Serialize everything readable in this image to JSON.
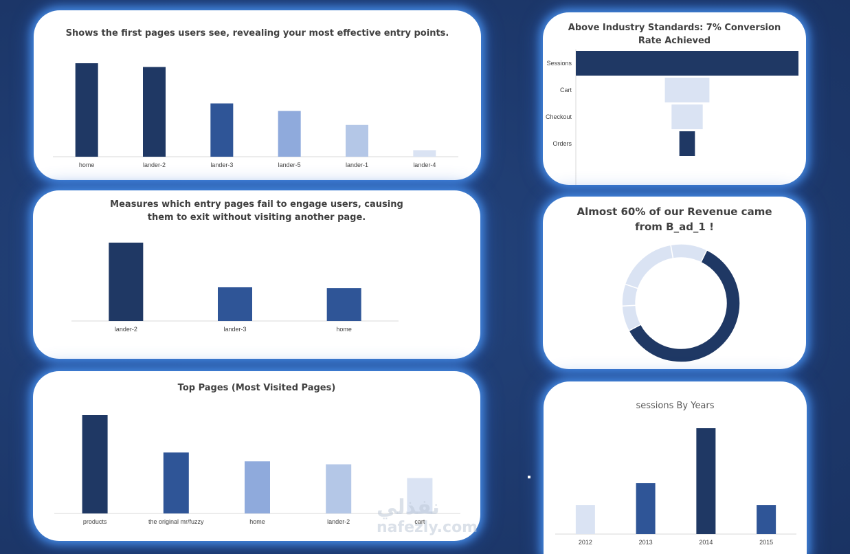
{
  "colors": {
    "navy": "#1f3864",
    "blue": "#2f5597",
    "mid_blue": "#8faadc",
    "light_blue": "#b4c7e7",
    "pale_blue": "#dae3f3",
    "page_bg": "#1e3a6e"
  },
  "watermark": {
    "arabic": "نفذلي",
    "latin": "nafezly.com"
  },
  "chart_data": [
    {
      "id": "entry",
      "type": "bar",
      "title": "Shows the first pages users see, revealing your most effective entry points.",
      "categories": [
        "home",
        "lander-2",
        "lander-3",
        "lander-5",
        "lander-1",
        "lander-4"
      ],
      "values": [
        100,
        96,
        57,
        49,
        34,
        7
      ],
      "bar_colors": [
        "#1f3864",
        "#1f3864",
        "#2f5597",
        "#8faadc",
        "#b4c7e7",
        "#dae3f3"
      ],
      "ylim": [
        0,
        100
      ]
    },
    {
      "id": "bounce",
      "type": "bar",
      "title": "Measures which entry pages fail to engage users, causing them to exit without visiting another page.",
      "categories": [
        "lander-2",
        "lander-3",
        "home"
      ],
      "values": [
        100,
        43,
        42
      ],
      "bar_colors": [
        "#1f3864",
        "#2f5597",
        "#2f5597"
      ],
      "ylim": [
        0,
        100
      ]
    },
    {
      "id": "top",
      "type": "bar",
      "title": "Top Pages (Most Visited Pages)",
      "categories": [
        "products",
        "the original mr/fuzzy",
        "home",
        "lander-2",
        "cart"
      ],
      "values": [
        100,
        62,
        53,
        50,
        36
      ],
      "bar_colors": [
        "#1f3864",
        "#2f5597",
        "#8faadc",
        "#b4c7e7",
        "#dae3f3"
      ],
      "ylim": [
        0,
        100
      ]
    },
    {
      "id": "funnel",
      "type": "bar",
      "orientation": "horizontal-funnel",
      "title": "Above Industry Standards: 7% Conversion Rate Achieved",
      "categories": [
        "Sessions",
        "Cart",
        "Checkout",
        "Orders"
      ],
      "values": [
        100,
        20,
        14,
        7
      ],
      "bar_colors": [
        "#1f3864",
        "#dae3f3",
        "#dae3f3",
        "#1f3864"
      ],
      "ylim": [
        0,
        100
      ]
    },
    {
      "id": "donut",
      "type": "pie",
      "style": "donut",
      "title": "Almost 60% of our Revenue came from B_ad_1 !",
      "values": [
        60,
        7,
        6,
        17,
        10
      ],
      "slice_colors": [
        "#1f3864",
        "#dae3f3",
        "#dae3f3",
        "#dae3f3",
        "#dae3f3"
      ]
    },
    {
      "id": "years",
      "type": "bar",
      "title": "sessions By Years",
      "categories": [
        "2012",
        "2013",
        "2014",
        "2015"
      ],
      "values": [
        42,
        74,
        154,
        42
      ],
      "bar_colors": [
        "#dae3f3",
        "#2f5597",
        "#1f3864",
        "#2f5597"
      ],
      "ylim": [
        0,
        154
      ]
    }
  ]
}
